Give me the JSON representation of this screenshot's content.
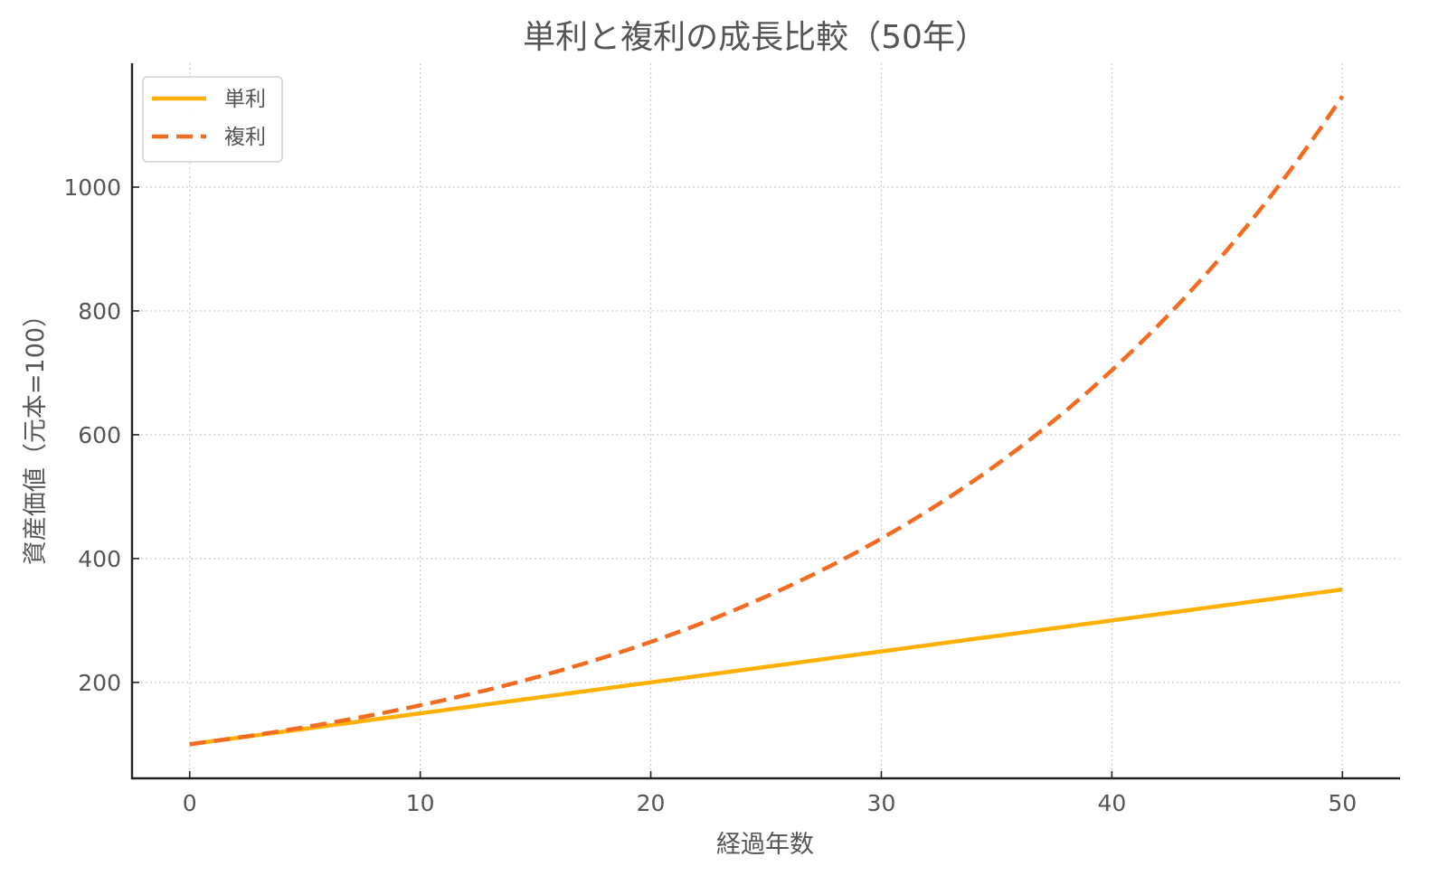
{
  "chart_data": {
    "type": "line",
    "title": "単利と複利の成長比較（50年）",
    "xlabel": "経過年数",
    "ylabel": "資産価値（元本=100）",
    "xlim": [
      -2.5,
      52.5
    ],
    "ylim": [
      45,
      1200
    ],
    "xticks": [
      0,
      10,
      20,
      30,
      40,
      50
    ],
    "yticks": [
      200,
      400,
      600,
      800,
      1000
    ],
    "grid": true,
    "grid_style": "dotted",
    "legend_position": "upper left",
    "rate": 0.05,
    "principal": 100,
    "x": [
      0,
      1,
      2,
      3,
      4,
      5,
      6,
      7,
      8,
      9,
      10,
      11,
      12,
      13,
      14,
      15,
      16,
      17,
      18,
      19,
      20,
      21,
      22,
      23,
      24,
      25,
      26,
      27,
      28,
      29,
      30,
      31,
      32,
      33,
      34,
      35,
      36,
      37,
      38,
      39,
      40,
      41,
      42,
      43,
      44,
      45,
      46,
      47,
      48,
      49,
      50
    ],
    "series": [
      {
        "name": "単利",
        "style": "solid",
        "color": "#FFB000",
        "values": [
          100,
          105,
          110,
          115,
          120,
          125,
          130,
          135,
          140,
          145,
          150,
          155,
          160,
          165,
          170,
          175,
          180,
          185,
          190,
          195,
          200,
          205,
          210,
          215,
          220,
          225,
          230,
          235,
          240,
          245,
          250,
          255,
          260,
          265,
          270,
          275,
          280,
          285,
          290,
          295,
          300,
          305,
          310,
          315,
          320,
          325,
          330,
          335,
          340,
          345,
          350
        ]
      },
      {
        "name": "複利",
        "style": "dashed",
        "color": "#F26B21",
        "values": [
          100.0,
          105.0,
          110.25,
          115.76,
          121.55,
          127.63,
          134.01,
          140.71,
          147.75,
          155.13,
          162.89,
          171.03,
          179.59,
          188.56,
          197.99,
          207.89,
          218.29,
          229.2,
          240.66,
          252.7,
          265.33,
          278.6,
          292.53,
          307.15,
          322.51,
          338.64,
          355.57,
          373.35,
          392.01,
          411.61,
          432.19,
          453.8,
          476.49,
          500.32,
          525.33,
          551.6,
          579.18,
          608.14,
          638.55,
          670.48,
          704.0,
          739.2,
          776.16,
          814.97,
          855.72,
          898.5,
          943.43,
          990.6,
          1040.13,
          1092.14,
          1146.74
        ]
      }
    ]
  },
  "colors": {
    "axis": "#222222",
    "grid": "#cccccc",
    "legend_border": "#d0d0d0",
    "text": "#555555"
  }
}
